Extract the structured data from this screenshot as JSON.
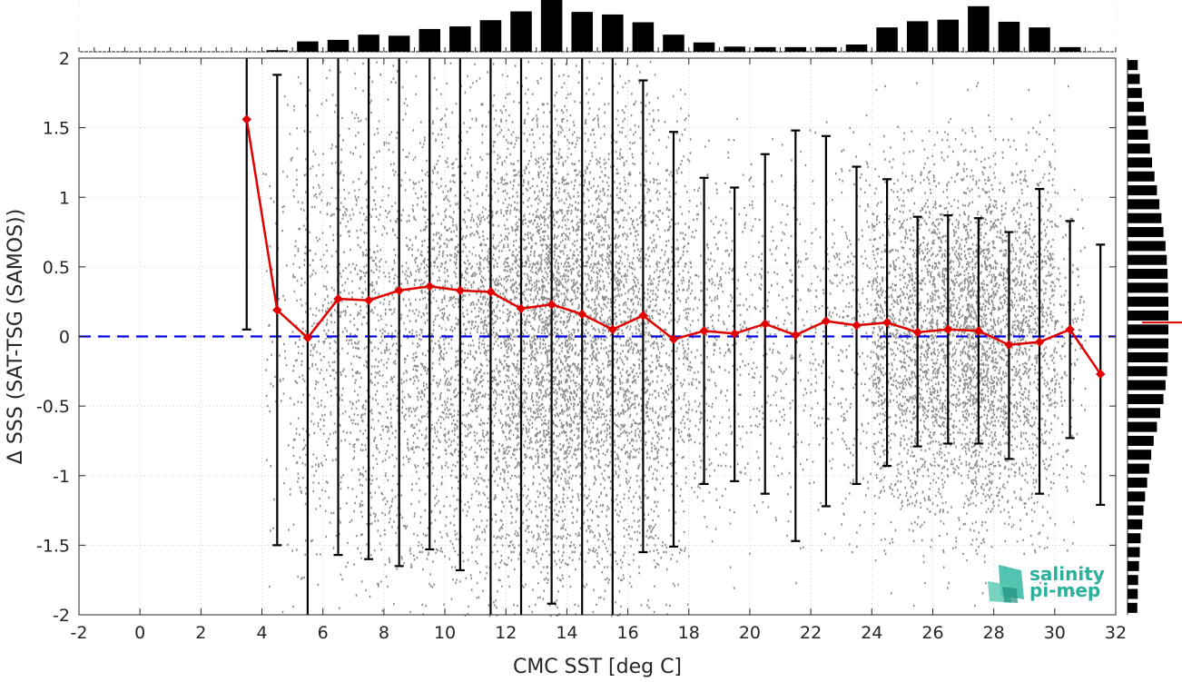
{
  "chart_data": {
    "type": "scatter",
    "xlabel": "CMC SST [deg C]",
    "ylabel": "Δ SSS (SAT-TSG (SAMOS))",
    "xlim": [
      -2,
      32
    ],
    "ylim": [
      -2,
      2
    ],
    "x_ticks": [
      "-2",
      "0",
      "2",
      "4",
      "6",
      "8",
      "10",
      "12",
      "14",
      "16",
      "18",
      "20",
      "22",
      "24",
      "26",
      "28",
      "30",
      "32"
    ],
    "y_ticks": [
      "2",
      "1.5",
      "1",
      "0.5",
      "0",
      "-0.5",
      "-1",
      "-1.5",
      "-2"
    ],
    "grid": true,
    "scatter_color": "#808080",
    "mean_series": {
      "color": "#e00000",
      "x": [
        3.5,
        4.5,
        5.5,
        6.5,
        7.5,
        8.5,
        9.5,
        10.5,
        11.5,
        12.5,
        13.5,
        14.5,
        15.5,
        16.5,
        17.5,
        18.5,
        19.5,
        20.5,
        21.5,
        22.5,
        23.5,
        24.5,
        25.5,
        26.5,
        27.5,
        28.5,
        29.5,
        30.5,
        31.5
      ],
      "y": [
        1.56,
        0.19,
        -0.01,
        0.27,
        0.26,
        0.33,
        0.36,
        0.33,
        0.32,
        0.2,
        0.23,
        0.16,
        0.05,
        0.15,
        -0.02,
        0.04,
        0.02,
        0.09,
        0.01,
        0.11,
        0.08,
        0.1,
        0.03,
        0.05,
        0.04,
        -0.06,
        -0.04,
        0.05,
        -0.27
      ],
      "err_low": [
        0.05,
        -1.5,
        -2.0,
        -1.57,
        -1.6,
        -1.65,
        -1.53,
        -1.68,
        -2.0,
        -2.0,
        -1.92,
        -2.0,
        -2.0,
        -1.55,
        -1.51,
        -1.06,
        -1.04,
        -1.13,
        -1.47,
        -1.22,
        -1.06,
        -0.93,
        -0.79,
        -0.77,
        -0.77,
        -0.88,
        -1.13,
        -0.73,
        -1.21
      ],
      "err_high": [
        2.0,
        1.88,
        2.0,
        2.0,
        2.0,
        2.0,
        2.0,
        2.0,
        2.0,
        2.0,
        2.0,
        2.0,
        2.0,
        1.84,
        1.47,
        1.14,
        1.07,
        1.31,
        1.48,
        1.44,
        1.22,
        1.13,
        0.86,
        0.87,
        0.85,
        0.75,
        1.06,
        0.83,
        0.66
      ]
    },
    "zero_line": {
      "y": 0,
      "color": "#0000dd",
      "style": "dashed"
    },
    "top_histogram": {
      "bins": [
        4.5,
        5.5,
        6.5,
        7.5,
        8.5,
        9.5,
        10.5,
        11.5,
        12.5,
        13.5,
        14.5,
        15.5,
        16.5,
        17.5,
        18.5,
        19.5,
        20.5,
        21.5,
        22.5,
        23.5,
        24.5,
        25.5,
        26.5,
        27.5,
        28.5,
        29.5,
        30.5
      ],
      "relative_counts": [
        0.03,
        0.2,
        0.23,
        0.33,
        0.31,
        0.44,
        0.49,
        0.61,
        0.78,
        1.0,
        0.77,
        0.72,
        0.57,
        0.33,
        0.18,
        0.1,
        0.09,
        0.09,
        0.09,
        0.14,
        0.47,
        0.59,
        0.62,
        0.88,
        0.58,
        0.47,
        0.09
      ]
    },
    "right_histogram": {
      "y_bins": [
        1.95,
        1.85,
        1.75,
        1.65,
        1.55,
        1.45,
        1.35,
        1.25,
        1.15,
        1.05,
        0.95,
        0.85,
        0.75,
        0.65,
        0.55,
        0.45,
        0.35,
        0.25,
        0.15,
        0.05,
        -0.05,
        -0.15,
        -0.25,
        -0.35,
        -0.45,
        -0.55,
        -0.65,
        -0.75,
        -0.85,
        -0.95,
        -1.05,
        -1.15,
        -1.25,
        -1.35,
        -1.45,
        -1.55,
        -1.65,
        -1.75,
        -1.85,
        -1.95
      ],
      "relative_counts": [
        0.25,
        0.3,
        0.35,
        0.4,
        0.45,
        0.5,
        0.55,
        0.6,
        0.66,
        0.72,
        0.78,
        0.83,
        0.88,
        0.93,
        0.96,
        0.98,
        0.99,
        1.0,
        1.0,
        1.0,
        1.0,
        0.99,
        0.97,
        0.93,
        0.88,
        0.8,
        0.72,
        0.64,
        0.58,
        0.53,
        0.48,
        0.43,
        0.39,
        0.36,
        0.32,
        0.3,
        0.28,
        0.26,
        0.25,
        0.24
      ],
      "mean_marker_y": 0.1
    }
  },
  "logo": {
    "line1": "salinity",
    "line2": "pi-mep",
    "color": "#2ab09b"
  }
}
